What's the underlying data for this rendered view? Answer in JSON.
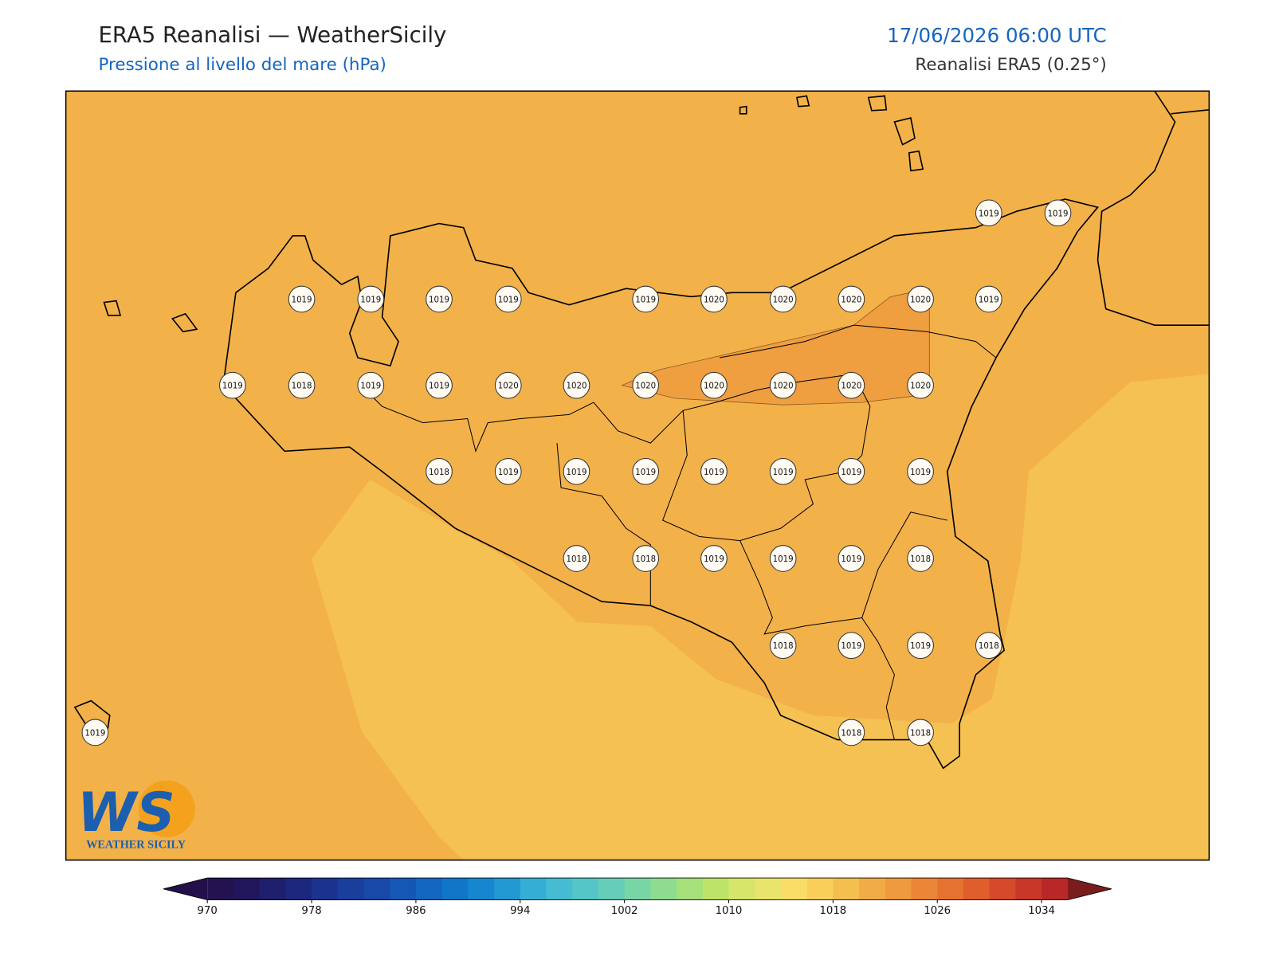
{
  "header": {
    "title": "ERA5 Reanalisi — WeatherSicily",
    "subtitle": "Pressione al livello del mare (hPa)",
    "date": "17/06/2026 06:00 UTC",
    "source": "Reanalisi ERA5 (0.25°)"
  },
  "stations": [
    1019,
    1019,
    1019,
    1019,
    1019,
    1019,
    1019,
    1020,
    1020,
    1020,
    1020,
    1019,
    1019,
    1018,
    1019,
    1019,
    1020,
    1020,
    1020,
    1020,
    1020,
    1020,
    1020,
    1018,
    1019,
    1019,
    1019,
    1019,
    1019,
    1019,
    1019,
    1018,
    1018,
    1019,
    1019,
    1019,
    1018,
    1018,
    1019,
    1019,
    1018,
    1019,
    1018,
    1018
  ],
  "colorbar": {
    "lim": [
      970,
      1036
    ],
    "ticks": [
      970,
      978,
      986,
      994,
      1002,
      1010,
      1018,
      1026,
      1034
    ],
    "under": "#23104a",
    "over": "#7a1c1c",
    "colors": [
      "#23124f",
      "#21165c",
      "#1e1f6d",
      "#1c287e",
      "#1b338f",
      "#1a3e9c",
      "#1749a8",
      "#1457b4",
      "#1266bf",
      "#1176c8",
      "#1687ce",
      "#2298d2",
      "#35aed6",
      "#45bcd2",
      "#55c6c8",
      "#66ceb8",
      "#78d6a6",
      "#8edc90",
      "#a5e07a",
      "#bde469",
      "#d5e66a",
      "#e8e46c",
      "#f9dd66",
      "#f9cf5a",
      "#f5bf50",
      "#f2ac46",
      "#ef9a3e",
      "#eb8636",
      "#e67230",
      "#df5e2c",
      "#d54a2a",
      "#c93729",
      "#b82828"
    ]
  },
  "logo": {
    "letters": "WS",
    "text": "WEATHER SICILY"
  }
}
